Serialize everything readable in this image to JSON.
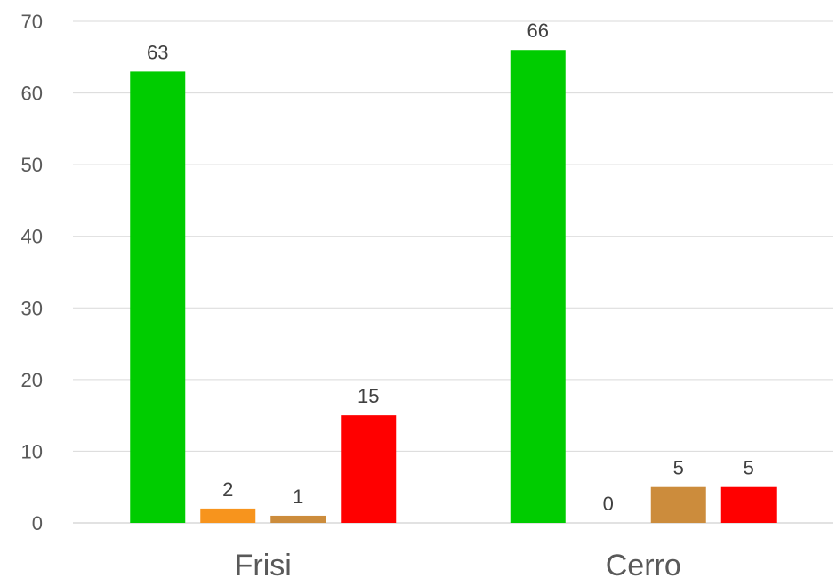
{
  "chart_data": {
    "type": "bar",
    "title": "",
    "xlabel": "",
    "ylabel": "",
    "categories": [
      "Frisi",
      "Cerro"
    ],
    "series": [
      {
        "color": "#00cc00",
        "values": [
          63,
          66
        ]
      },
      {
        "color": "#f7941d",
        "values": [
          2,
          0
        ]
      },
      {
        "color": "#cc8c3c",
        "values": [
          1,
          5
        ]
      },
      {
        "color": "#ff0000",
        "values": [
          15,
          5
        ]
      }
    ],
    "ylim": [
      0,
      70
    ],
    "yticks": [
      0,
      10,
      20,
      30,
      40,
      50,
      60,
      70
    ],
    "grid": true,
    "legend": "none",
    "data_labels": true
  }
}
